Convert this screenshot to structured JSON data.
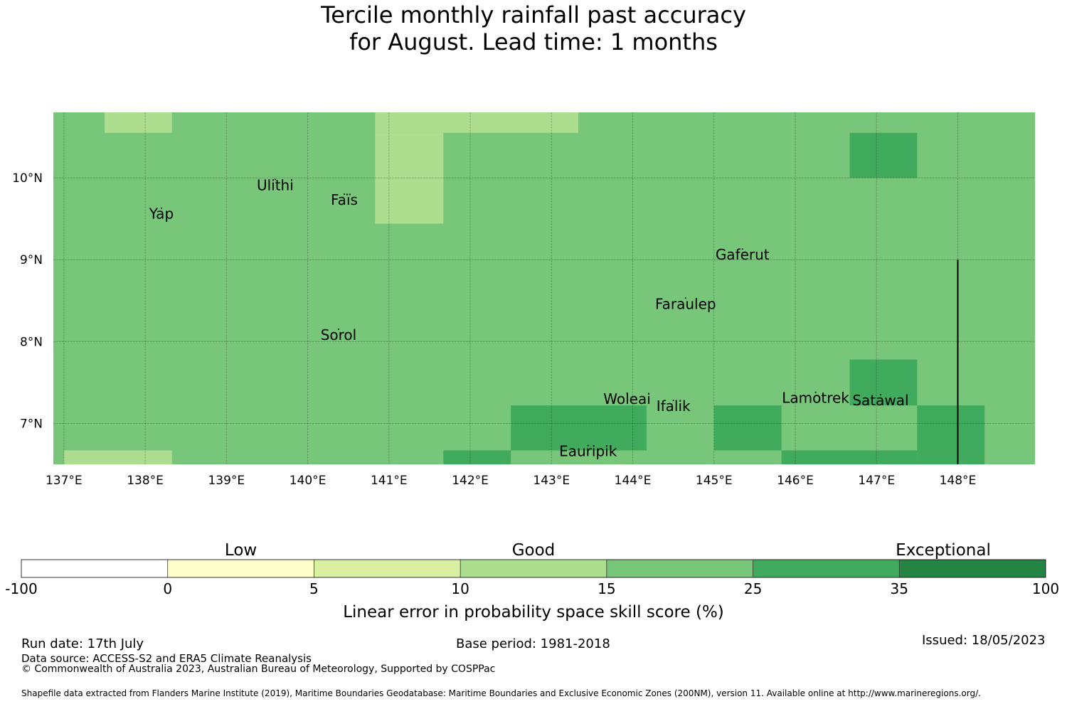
{
  "title": {
    "line1": "Tercile monthly rainfall past accuracy",
    "line2": "for August. Lead time: 1 months"
  },
  "map": {
    "lon_ticks": [
      "137°E",
      "138°E",
      "139°E",
      "140°E",
      "141°E",
      "142°E",
      "143°E",
      "144°E",
      "145°E",
      "146°E",
      "147°E",
      "148°E"
    ],
    "lat_ticks": [
      "10°N",
      "9°N",
      "8°N",
      "7°N"
    ],
    "places": [
      {
        "name": "Yap",
        "lon": 138.2,
        "lat": 9.5
      },
      {
        "name": "Ulithi",
        "lon": 139.6,
        "lat": 9.85
      },
      {
        "name": "Faïs",
        "lon": 140.45,
        "lat": 9.67
      },
      {
        "name": "Gaferut",
        "lon": 145.35,
        "lat": 9.0
      },
      {
        "name": "Faraulep",
        "lon": 144.65,
        "lat": 8.4
      },
      {
        "name": "Sorol",
        "lon": 140.38,
        "lat": 8.02
      },
      {
        "name": "Woleai",
        "lon": 143.93,
        "lat": 7.24
      },
      {
        "name": "Ifalik",
        "lon": 144.5,
        "lat": 7.15
      },
      {
        "name": "Lamotrek",
        "lon": 146.25,
        "lat": 7.25
      },
      {
        "name": "Satawal",
        "lon": 147.05,
        "lat": 7.22
      },
      {
        "name": "Eauripik",
        "lon": 143.45,
        "lat": 6.6
      }
    ],
    "skill_grid": {
      "description_units": "LEPS skill score (%) category index per cell",
      "base_category": 4,
      "patches": [
        {
          "lon": [
            137.5,
            138.33
          ],
          "lat": [
            10.55,
            10.8
          ],
          "category": 3
        },
        {
          "lon": [
            140.83,
            143.33
          ],
          "lat": [
            10.55,
            10.8
          ],
          "category": 3
        },
        {
          "lon": [
            140.83,
            141.67
          ],
          "lat": [
            9.44,
            10.55
          ],
          "category": 3
        },
        {
          "lon": [
            137.0,
            138.33
          ],
          "lat": [
            6.5,
            6.67
          ],
          "category": 3
        },
        {
          "lon": [
            146.67,
            147.5
          ],
          "lat": [
            10.0,
            10.55
          ],
          "category": 5
        },
        {
          "lon": [
            146.67,
            147.5
          ],
          "lat": [
            7.22,
            7.78
          ],
          "category": 5
        },
        {
          "lon": [
            142.5,
            144.17
          ],
          "lat": [
            6.67,
            7.22
          ],
          "category": 5
        },
        {
          "lon": [
            141.67,
            142.5
          ],
          "lat": [
            6.5,
            6.67
          ],
          "category": 5
        },
        {
          "lon": [
            145.0,
            145.83
          ],
          "lat": [
            6.67,
            7.22
          ],
          "category": 5
        },
        {
          "lon": [
            145.83,
            147.5
          ],
          "lat": [
            6.5,
            6.67
          ],
          "category": 5
        },
        {
          "lon": [
            147.5,
            148.33
          ],
          "lat": [
            6.5,
            7.22
          ],
          "category": 5
        }
      ]
    },
    "eez_line": {
      "lon": 148.0,
      "lat": [
        6.5,
        9.0
      ]
    }
  },
  "colorbar": {
    "categories": [
      "Low",
      "Good",
      "Exceptional"
    ],
    "ticks": [
      "-100",
      "0",
      "5",
      "10",
      "15",
      "25",
      "35",
      "100"
    ],
    "colors": [
      "#ffffff",
      "#ffffcc",
      "#d9f0a3",
      "#addd8e",
      "#78c679",
      "#41ab5d",
      "#238443"
    ],
    "label": "Linear error in probability space skill score (%)"
  },
  "footer": {
    "run_date": "Run date: 17th July",
    "base_period": "Base period: 1981-2018",
    "issued": "Issued: 18/05/2023",
    "data_source": "Data source: ACCESS-S2 and ERA5 Climate Reanalysis",
    "copyright": "© Commonwealth of Australia 2023, Australian Bureau of Meteorology, Supported by COSPPac",
    "shapefile": "Shapefile data extracted from Flanders Marine Institute (2019), Maritime Boundaries Geodatabase: Maritime Boundaries and Exclusive Economic Zones (200NM), version 11. Available online at http://www.marineregions.org/."
  }
}
